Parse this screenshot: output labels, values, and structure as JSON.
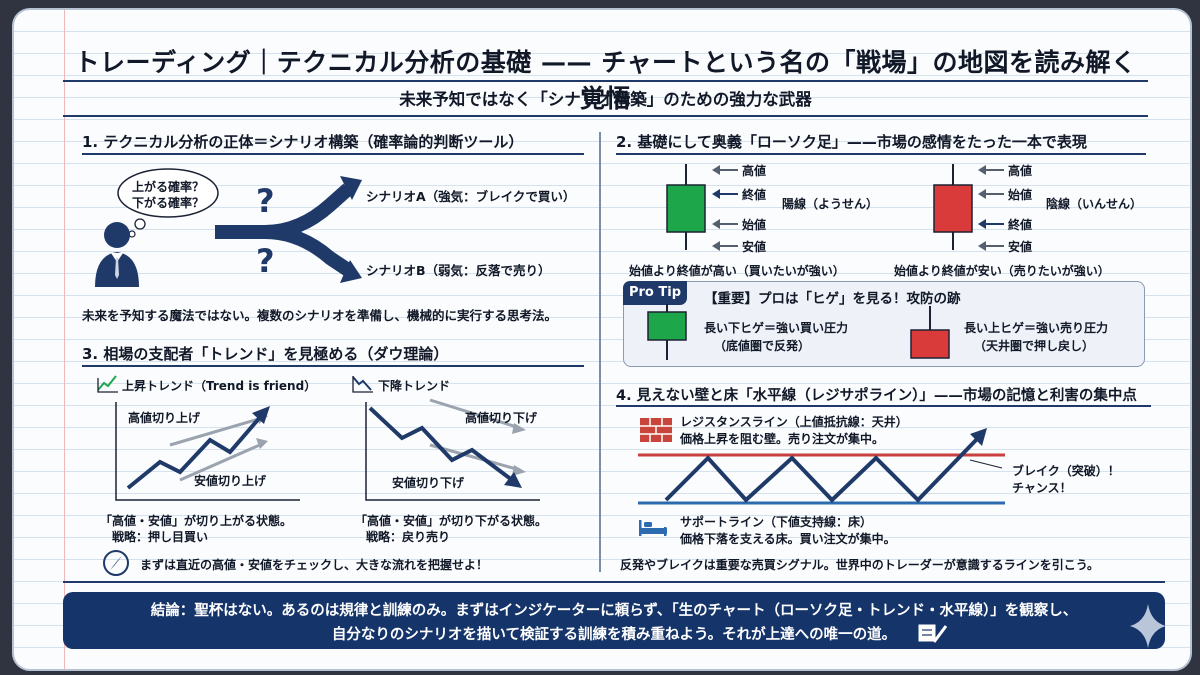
{
  "title": "トレーディング｜テクニカル分析の基礎 —— チャートという名の「戦場」の地図を読み解く覚悟",
  "subtitle": "未来予知ではなく「シナリオ構築」のための強力な武器",
  "section1": {
    "heading": "1. テクニカル分析の正体＝シナリオ構築（確率論的判断ツール）",
    "bubble_line1": "上がる確率？",
    "bubble_line2": "下がる確率？",
    "question_mark": "?",
    "scenario_a": "シナリオA（強気：ブレイクで買い）",
    "scenario_b": "シナリオB（弱気：反落で売り）",
    "summary": "未来を予知する魔法ではない。複数のシナリオを準備し、機械的に実行する思考法。"
  },
  "section2": {
    "heading": "2. 基礎にして奥義「ローソク足」——市場の感情をたった一本で表現",
    "bullish": {
      "name": "陽線（ようせん）",
      "high": "高値",
      "close": "終値",
      "open": "始値",
      "low": "安値",
      "caption": "始値より終値が高い（買いたいが強い）",
      "color": "#1ea64a"
    },
    "bearish": {
      "name": "陰線（いんせん）",
      "high": "高値",
      "open": "始値",
      "close": "終値",
      "low": "安値",
      "caption": "始値より終値が安い（売りたいが強い）",
      "color": "#d93a3a"
    },
    "protip": {
      "badge": "Pro Tip",
      "title": "【重要】プロは「ヒゲ」を見る！攻防の跡",
      "left_line1": "長い下ヒゲ＝強い買い圧力",
      "left_line2": "（底値圏で反発）",
      "right_line1": "長い上ヒゲ＝強い売り圧力",
      "right_line2": "（天井圏で押し戻し）"
    }
  },
  "section3": {
    "heading": "3. 相場の支配者「トレンド」を見極める（ダウ理論）",
    "up": {
      "label": "上昇トレンド（Trend is friend）",
      "higher_highs": "高値切り上げ",
      "higher_lows": "安値切り上げ",
      "caption1": "「高値・安値」が切り上がる状態。",
      "caption2": "戦略：押し目買い"
    },
    "down": {
      "label": "下降トレンド",
      "lower_highs": "高値切り下げ",
      "lower_lows": "安値切り下げ",
      "caption1": "「高値・安値」が切り下がる状態。",
      "caption2": "戦略：戻り売り"
    },
    "tip": "まずは直近の高値・安値をチェックし、大きな流れを把握せよ！"
  },
  "section4": {
    "heading": "4. 見えない壁と床「水平線（レジサポライン）」——市場の記憶と利害の集中点",
    "resistance_title": "レジスタンスライン（上値抵抗線：天井）",
    "resistance_desc": "価格上昇を阻む壁。売り注文が集中。",
    "support_title": "サポートライン（下値支持線：床）",
    "support_desc": "価格下落を支える床。買い注文が集中。",
    "break_line1": "ブレイク（突破）！",
    "break_line2": "チャンス！",
    "summary": "反発やブレイクは重要な売買シグナル。世界中のトレーダーが意識するラインを引こう。"
  },
  "conclusion": {
    "line1": "結論：聖杯はない。あるのは規律と訓練のみ。まずはインジケーターに頼らず、「生のチャート（ローソク足・トレンド・水平線）」を観察し、",
    "line2": "自分なりのシナリオを描いて検証する訓練を積み重ねよう。それが上達への唯一の道。"
  },
  "colors": {
    "navy": "#1f3a68",
    "green": "#1ea64a",
    "red": "#d93a3a",
    "resistance": "#c94040",
    "support": "#2c6bb0",
    "conclusion_bg": "#15346a"
  }
}
